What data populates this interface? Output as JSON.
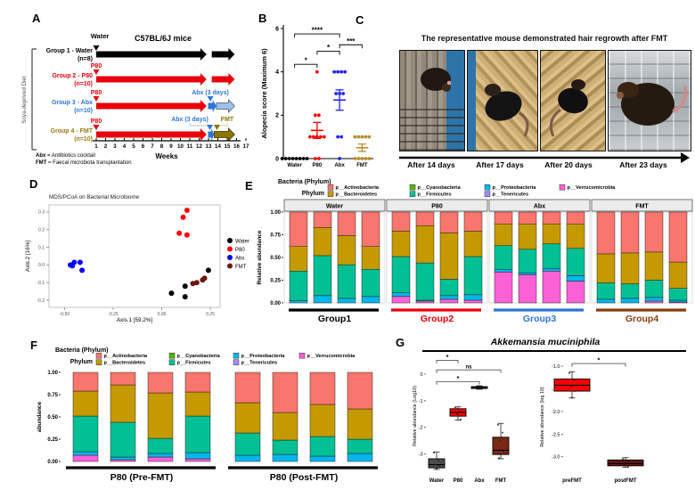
{
  "letters": {
    "A": "A",
    "B": "B",
    "C": "C",
    "D": "D",
    "E": "E",
    "F": "F",
    "G": "G"
  },
  "panelA": {
    "side_label": "Soya-deprived Diet",
    "title": "C57BL/6J mice",
    "water_label": "Water",
    "p80_label": "P80",
    "abx_days_label": "Abx (3 days)",
    "fmt_label": "FMT",
    "groups": [
      {
        "name": "Group 1 - Water",
        "n": "(n=8)",
        "color": "#000000",
        "segments": [
          {
            "from": 1,
            "to": 12.8,
            "color": "#000000"
          },
          {
            "from": 13.35,
            "to": 15.8,
            "color": "#000000"
          }
        ]
      },
      {
        "name": "Group 2 - P80",
        "n": "(n=10)",
        "color": "#e8000b",
        "segments": [
          {
            "from": 1,
            "to": 12.8,
            "color": "#e8000b"
          },
          {
            "from": 13.35,
            "to": 15.8,
            "color": "#e8000b"
          }
        ]
      },
      {
        "name": "Group 3 - Abx",
        "n": "(n=10)",
        "color": "#2e75d6",
        "segments": [
          {
            "from": 1,
            "to": 12.8,
            "color": "#e8000b"
          },
          {
            "from": 12.95,
            "to": 13.85,
            "color": "#2e75d6"
          },
          {
            "from": 13.85,
            "to": 15.8,
            "color": "#9dc3e6",
            "outline": "#44506e"
          }
        ]
      },
      {
        "name": "Group 4 - FMT",
        "n": "(n=10)",
        "color": "#9c7a10",
        "segments": [
          {
            "from": 1,
            "to": 12.8,
            "color": "#e8000b"
          },
          {
            "from": 12.95,
            "to": 13.6,
            "color": "#2e75d6"
          },
          {
            "from": 13.6,
            "to": 15.8,
            "color": "#8a7500",
            "outline": "#3a3000"
          }
        ]
      }
    ],
    "weeks": [
      "1",
      "2",
      "3",
      "4",
      "5",
      "6",
      "7",
      "8",
      "9",
      "10",
      "11",
      "12",
      "13",
      "14",
      "15",
      "16",
      "17"
    ],
    "weeks_label": "Weeks",
    "footnotes": [
      {
        "term": "Abx",
        "definition": "= Antibiotics cocktail"
      },
      {
        "term": "FMT",
        "definition": "= Faecal microbiota transplantation"
      }
    ]
  },
  "panelC": {
    "title": "The representative mouse demonstrated hair regrowth after FMT",
    "captions": [
      "After 14 days",
      "After 17 days",
      "After 20 days",
      "After 23 days"
    ]
  },
  "panelG": {
    "title": "Akkemansia muciniphila"
  },
  "chart_data": [
    {
      "id": "B",
      "type": "scatter",
      "ylabel": "Alopecia score (Maximum 6)",
      "ylim": [
        0,
        6
      ],
      "yticks": [
        0,
        2,
        4,
        6
      ],
      "categories": [
        "Water",
        "P80",
        "Abx",
        "FMT"
      ],
      "colors": [
        "#000000",
        "#f50000",
        "#2222e8",
        "#b8902e"
      ],
      "points": {
        "Water": [
          0,
          0,
          0,
          0,
          0,
          0,
          0,
          0
        ],
        "P80": [
          0,
          0,
          1,
          1,
          1,
          1,
          1,
          2,
          2,
          4
        ],
        "Abx": [
          0,
          1,
          1,
          3,
          3,
          3,
          4,
          4,
          4,
          4
        ],
        "FMT": [
          0,
          0,
          0,
          0,
          0,
          1,
          1,
          1,
          1,
          1
        ]
      },
      "means": [
        0,
        1.3,
        2.7,
        0.5
      ],
      "sems": [
        0,
        0.37,
        0.47,
        0.17
      ],
      "significance": [
        {
          "from": "Water",
          "to": "P80",
          "label": "*",
          "height": 4.35
        },
        {
          "from": "P80",
          "to": "Abx",
          "label": "*",
          "height": 4.95
        },
        {
          "from": "Water",
          "to": "Abx",
          "label": "****",
          "height": 5.75
        },
        {
          "from": "Abx",
          "to": "FMT",
          "label": "***",
          "height": 5.25
        }
      ]
    },
    {
      "id": "D",
      "type": "scatter",
      "title": "MDS/PCoA on Bacterial Microbiome",
      "xlabel": "Axis.1   [59.2%]",
      "ylabel": "Axis.2   [16%]",
      "xlim": [
        -0.58,
        0.3
      ],
      "ylim": [
        -0.24,
        0.34
      ],
      "xticks": [
        -0.5,
        -0.25,
        0.0,
        0.25
      ],
      "xtick_labels": [
        "-0.50",
        "-0.25",
        "0.00",
        "0.25"
      ],
      "yticks": [
        0.3,
        0.2,
        0.1,
        0.0,
        -0.1,
        -0.2
      ],
      "ytick_labels": [
        "0.3",
        "0.2",
        "0.1",
        "0.0",
        "-0.1",
        "-0.2"
      ],
      "series": [
        {
          "name": "Water",
          "color": "#000000",
          "points": [
            [
              0.05,
              -0.16
            ],
            [
              0.12,
              -0.18
            ],
            [
              0.12,
              -0.12
            ],
            [
              0.24,
              -0.03
            ]
          ]
        },
        {
          "name": "P80",
          "color": "#ff0000",
          "points": [
            [
              0.13,
              0.31
            ],
            [
              0.11,
              0.27
            ],
            [
              0.09,
              0.18
            ],
            [
              0.13,
              0.17
            ]
          ]
        },
        {
          "name": "Abx",
          "color": "#0000ff",
          "points": [
            [
              -0.47,
              0.0
            ],
            [
              -0.45,
              0.015
            ],
            [
              -0.46,
              -0.005
            ],
            [
              -0.42,
              0.015
            ],
            [
              -0.41,
              -0.03
            ]
          ]
        },
        {
          "name": "FMT",
          "color": "#6b1a0e",
          "points": [
            [
              0.16,
              -0.105
            ],
            [
              0.18,
              -0.1
            ],
            [
              0.21,
              -0.085
            ],
            [
              0.22,
              -0.075
            ]
          ]
        }
      ]
    },
    {
      "id": "E",
      "type": "bar",
      "title": "Bacteria (Phylum)",
      "legend_title": "Phylum",
      "ylabel": "Relative abundance",
      "yticks": [
        1.0,
        0.75,
        0.5,
        0.25,
        0.0
      ],
      "ytick_labels": [
        "1.00",
        "0.75",
        "0.50",
        "0.25",
        "0.00"
      ],
      "phyla": [
        {
          "name": "p__Actinobacteria",
          "color": "#F8766D"
        },
        {
          "name": "p__Bacteroidetes",
          "color": "#C49A00"
        },
        {
          "name": "p__Cyanobacteria",
          "color": "#53B400"
        },
        {
          "name": "p__Firmicutes",
          "color": "#00C094"
        },
        {
          "name": "p__Proteobacteria",
          "color": "#00B6EB"
        },
        {
          "name": "p__Tenericutes",
          "color": "#A58AFF"
        },
        {
          "name": "p__Verrucomicrobia",
          "color": "#FB61D7"
        }
      ],
      "facets": [
        {
          "label": "Water",
          "group_label": "Group1",
          "group_color": "#000000",
          "bars": [
            [
              0.38,
              0.27,
              0,
              0.325,
              0.025,
              0,
              0
            ],
            [
              0.17,
              0.31,
              0,
              0.44,
              0.08,
              0,
              0
            ],
            [
              0.26,
              0.32,
              0,
              0.37,
              0.05,
              0,
              0
            ],
            [
              0.38,
              0.25,
              0,
              0.3,
              0.07,
              0,
              0
            ]
          ]
        },
        {
          "label": "P80",
          "group_label": "Group2",
          "group_color": "#e8000b",
          "bars": [
            [
              0.21,
              0.28,
              0,
              0.4,
              0.04,
              0,
              0.07
            ],
            [
              0.15,
              0.41,
              0,
              0.41,
              0.01,
              0,
              0.02
            ],
            [
              0.23,
              0.51,
              0,
              0.18,
              0.04,
              0,
              0.04
            ],
            [
              0.21,
              0.28,
              0,
              0.42,
              0.06,
              0,
              0.03
            ]
          ]
        },
        {
          "label": "Abx",
          "group_label": "Group3",
          "group_color": "#2e75d6",
          "bars": [
            [
              0.13,
              0.24,
              0,
              0.26,
              0.03,
              0,
              0.34
            ],
            [
              0.13,
              0.28,
              0,
              0.26,
              0.02,
              0,
              0.31
            ],
            [
              0.13,
              0.22,
              0,
              0.27,
              0.03,
              0,
              0.35
            ],
            [
              0.13,
              0.27,
              0,
              0.3,
              0.06,
              0,
              0.24
            ]
          ]
        },
        {
          "label": "FMT",
          "group_label": "Group4",
          "group_color": "#8a3c10",
          "bars": [
            [
              0.46,
              0.32,
              0,
              0.18,
              0.04,
              0,
              0
            ],
            [
              0.45,
              0.34,
              0,
              0.16,
              0.05,
              0,
              0
            ],
            [
              0.44,
              0.31,
              0,
              0.19,
              0.04,
              0,
              0.02
            ],
            [
              0.55,
              0.29,
              0,
              0.13,
              0.02,
              0,
              0.01
            ]
          ]
        }
      ]
    },
    {
      "id": "F",
      "type": "bar",
      "title": "Bacteria (Phylum)",
      "legend_title": "Phylum",
      "ylabel": "abundance",
      "yticks": [
        1.0,
        0.75,
        0.5,
        0.25,
        0.0
      ],
      "ytick_labels": [
        "1.00",
        "0.75",
        "0.50",
        "0.25",
        "0.00"
      ],
      "phyla": [
        {
          "name": "p__Actinobacteria",
          "color": "#F8766D"
        },
        {
          "name": "p__Bacteroidetes",
          "color": "#C49A00"
        },
        {
          "name": "p__Cyanobacteria",
          "color": "#53B400"
        },
        {
          "name": "p__Firmicutes",
          "color": "#00C094"
        },
        {
          "name": "p__Proteobacteria",
          "color": "#00B6EB"
        },
        {
          "name": "p__Tenericutes",
          "color": "#A58AFF"
        },
        {
          "name": "p__Verrucomicrobia",
          "color": "#FB61D7"
        }
      ],
      "facets": [
        {
          "label": "",
          "group_label": "P80 (Pre-FMT)",
          "group_color": "#000000",
          "bars": [
            [
              0.21,
              0.28,
              0,
              0.4,
              0.04,
              0,
              0.07
            ],
            [
              0.14,
              0.42,
              0,
              0.39,
              0.03,
              0,
              0.02
            ],
            [
              0.23,
              0.51,
              0,
              0.17,
              0.04,
              0,
              0.05
            ],
            [
              0.22,
              0.27,
              0,
              0.41,
              0.07,
              0,
              0.03
            ]
          ]
        },
        {
          "label": "",
          "group_label": "P80 (Post-FMT)",
          "group_color": "#000000",
          "bars": [
            [
              0.34,
              0.34,
              0,
              0.25,
              0.07,
              0,
              0
            ],
            [
              0.45,
              0.31,
              0,
              0.16,
              0.08,
              0,
              0
            ],
            [
              0.36,
              0.36,
              0,
              0.22,
              0.06,
              0,
              0
            ],
            [
              0.41,
              0.34,
              0,
              0.16,
              0.09,
              0,
              0
            ]
          ]
        }
      ]
    },
    {
      "id": "G1",
      "type": "box",
      "ylabel": "Relative abundance (Log10)",
      "ylim": [
        -3.75,
        0.6
      ],
      "yticks": [
        0,
        -1,
        -2,
        -3
      ],
      "ytick_labels": [
        "0",
        "-1",
        "-2",
        "-3"
      ],
      "categories": [
        "Water",
        "P80",
        "Abx",
        "FMT"
      ],
      "boxes": [
        {
          "name": "Water",
          "color": "#4d4d4d",
          "lo": -3.58,
          "q1": -3.52,
          "median": -3.4,
          "q3": -3.18,
          "hi": -2.92,
          "points": [
            -2.95,
            -3.25,
            -3.4,
            -3.45,
            -3.55
          ]
        },
        {
          "name": "P80",
          "color": "#fa0000",
          "lo": -1.73,
          "q1": -1.58,
          "median": -1.44,
          "q3": -1.3,
          "hi": -1.23,
          "points": [
            -1.25,
            -1.4,
            -1.5,
            -1.7
          ]
        },
        {
          "name": "Abx",
          "color": "#1622e8",
          "lo": -0.57,
          "q1": -0.54,
          "median": -0.5,
          "q3": -0.47,
          "hi": -0.44,
          "points": [
            -0.46,
            -0.5,
            -0.52
          ]
        },
        {
          "name": "FMT",
          "color": "#7a2815",
          "lo": -3.18,
          "q1": -3.02,
          "median": -2.86,
          "q3": -2.37,
          "hi": -1.85,
          "points": [
            -1.9,
            -2.2,
            -2.5,
            -2.9,
            -3.0,
            -3.15
          ]
        }
      ],
      "significance": [
        {
          "from": 0,
          "to": 1,
          "label": "*",
          "height": 0.52
        },
        {
          "from": 0,
          "to": 3,
          "label": "ns",
          "height": 0.16
        },
        {
          "from": 0,
          "to": 2,
          "label": "*",
          "height": -0.28
        }
      ]
    },
    {
      "id": "G2",
      "type": "box",
      "ylabel": "Relative abundance (log 10)",
      "ylim": [
        -3.38,
        -0.86
      ],
      "yticks": [
        -1.0,
        -1.5,
        -2.0,
        -2.5,
        -3.0
      ],
      "ytick_labels": [
        "-1.0",
        "-1.5",
        "-2.0",
        "-2.5",
        "-3.0"
      ],
      "categories": [
        "preFMT",
        "postFMT"
      ],
      "boxes": [
        {
          "name": "preFMT",
          "color": "#fa0000",
          "lo": -1.7,
          "q1": -1.55,
          "median": -1.42,
          "q3": -1.28,
          "hi": -1.12,
          "points": [
            -1.15,
            -1.3,
            -1.45,
            -1.55,
            -1.7
          ]
        },
        {
          "name": "postFMT",
          "color": "#641910",
          "lo": -3.23,
          "q1": -3.2,
          "median": -3.15,
          "q3": -3.07,
          "hi": -3.02,
          "points": [
            -3.05,
            -3.1,
            -3.17,
            -3.22
          ]
        }
      ],
      "significance": [
        {
          "from": 0,
          "to": 1,
          "label": "*",
          "height": -0.94
        }
      ]
    }
  ]
}
